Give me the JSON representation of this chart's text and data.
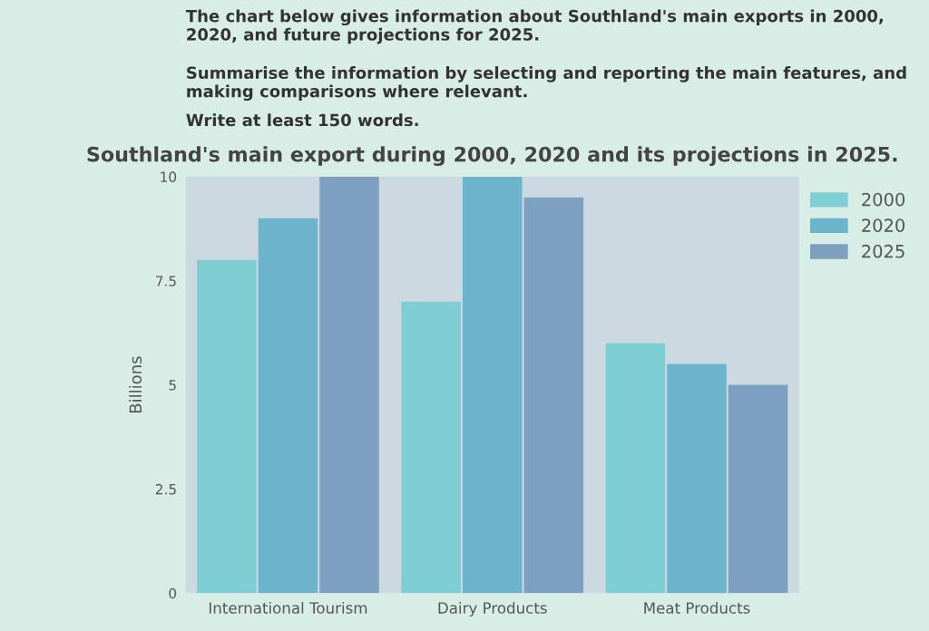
{
  "chart_data": {
    "type": "bar",
    "title": "Southland's main export during 2000, 2020 and its projections in 2025.",
    "annotations": [
      "The chart below gives information about Southland's main exports in 2000, 2020, and future projections for 2025.",
      "Summarise the information by selecting and reporting the main features, and making comparisons where relevant.",
      "Write at least 150 words."
    ],
    "ylabel": "Billions",
    "categories": [
      "International Tourism",
      "Dairy Products",
      "Meat Products"
    ],
    "series": [
      {
        "name": "2000",
        "color": "#7ecfd4",
        "values": [
          8,
          7,
          6
        ]
      },
      {
        "name": "2020",
        "color": "#6cb4cc",
        "values": [
          9,
          10,
          5.5
        ]
      },
      {
        "name": "2025",
        "color": "#7d9fc0",
        "values": [
          10,
          9.5,
          5
        ]
      }
    ],
    "ylim": [
      0,
      10
    ],
    "yticks": [
      0,
      2.5,
      5,
      7.5,
      10
    ],
    "grid": false,
    "legend": "top right"
  }
}
